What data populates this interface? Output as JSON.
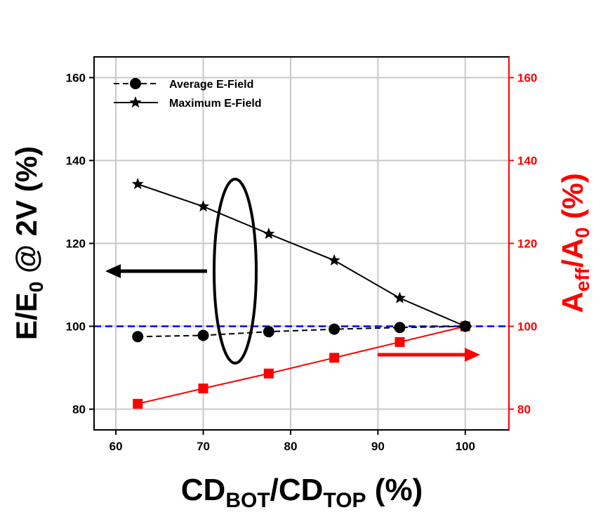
{
  "chart_data": {
    "type": "line",
    "x": [
      62.5,
      70,
      77.5,
      85,
      92.5,
      100
    ],
    "x_ticks": [
      "60",
      "70",
      "80",
      "90",
      "100"
    ],
    "xlim": [
      57.5,
      105
    ],
    "xlabel": {
      "base1": "CD",
      "sub1": "BOT",
      "mid": "/CD",
      "sub2": "TOP",
      "suffix": " (%)"
    },
    "left_axis": {
      "label": {
        "base": "E/E",
        "sub": "0",
        "suffix": " @ 2V (%)"
      },
      "ylim": [
        75,
        165
      ],
      "ticks": [
        "80",
        "100",
        "120",
        "140",
        "160"
      ],
      "color": "#000000"
    },
    "right_axis": {
      "label": {
        "base1": "A",
        "sub1": "eff",
        "mid": "/A",
        "sub2": "0",
        "suffix": " (%)"
      },
      "ylim": [
        75,
        165
      ],
      "ticks": [
        "80",
        "100",
        "120",
        "140",
        "160"
      ],
      "color": "#ff0000"
    },
    "series": [
      {
        "name": "Average E-Field",
        "axis": "left",
        "marker": "circle",
        "line": "dashed",
        "color": "#000000",
        "values": [
          97.5,
          97.8,
          98.7,
          99.3,
          99.7,
          100
        ]
      },
      {
        "name": "Maximum E-Field",
        "axis": "left",
        "marker": "star",
        "line": "solid",
        "color": "#000000",
        "values": [
          134.3,
          128.9,
          122.3,
          115.9,
          106.8,
          100
        ]
      },
      {
        "axis": "right",
        "marker": "square",
        "line": "solid",
        "color": "#ff0000",
        "values": [
          81.3,
          85.0,
          88.6,
          92.4,
          96.2,
          100
        ]
      }
    ],
    "reference_line": {
      "y": 100,
      "color": "#0000ff",
      "style": "dashed"
    },
    "grid": true,
    "legend_position": "top-left"
  }
}
